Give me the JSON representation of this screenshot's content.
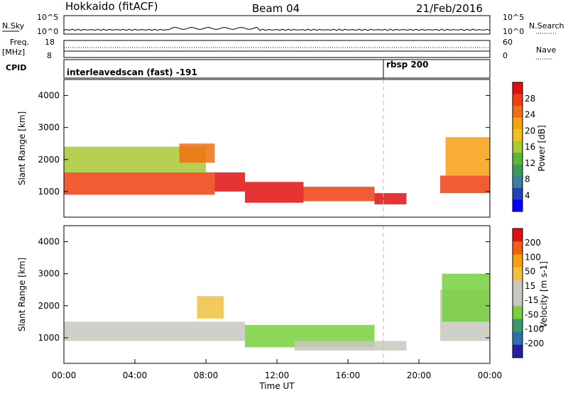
{
  "header": {
    "site": "Hokkaido (fitACF)",
    "beam": "Beam 04",
    "date": "21/Feb/2016"
  },
  "status_panels": {
    "nsky_label": "N.Sky",
    "nsearch_label": "N.Search",
    "nsky_ticks": [
      "10^5",
      "10^0"
    ],
    "nsearch_ticks": [
      "10^5",
      "10^0"
    ],
    "freq_label_1": "Freq.",
    "freq_label_2": "[MHz]",
    "freq_ticks": [
      "18",
      "8"
    ],
    "nave_label": "Nave",
    "nave_ticks": [
      "60",
      "0"
    ],
    "cpid_label": "CPID",
    "cpid_segments": [
      {
        "text": "interleavedscan (fast) -191",
        "start_hour": 0
      },
      {
        "text": "rbsp 200",
        "start_hour": 18.0
      }
    ]
  },
  "chart_data": [
    {
      "type": "heatmap",
      "panel": "power",
      "ylabel": "Slant Range [km]",
      "ylim": [
        200,
        4500
      ],
      "yticks": [
        "1000",
        "2000",
        "3000",
        "4000"
      ],
      "xlim_hours": [
        0,
        24
      ],
      "colorbar_label": "Power [dB]",
      "colorbar_ticks": [
        "28",
        "24",
        "20",
        "16",
        "12",
        "8",
        "4"
      ],
      "colorbar_colors": [
        "#0000ff",
        "#2040c0",
        "#3a7fa0",
        "#3c9a5a",
        "#5ab835",
        "#a8c835",
        "#f0c020",
        "#f7a010",
        "#f07010",
        "#f04010",
        "#e01010"
      ],
      "bands": [
        {
          "h0": 0.0,
          "h1": 8.5,
          "r0": 900,
          "r1": 1600,
          "color": "#f04010"
        },
        {
          "h0": 8.5,
          "h1": 10.2,
          "r0": 1000,
          "r1": 1600,
          "color": "#e01010"
        },
        {
          "h0": 10.2,
          "h1": 13.5,
          "r0": 650,
          "r1": 1300,
          "color": "#e01010"
        },
        {
          "h0": 13.5,
          "h1": 17.5,
          "r0": 700,
          "r1": 1150,
          "color": "#f04010"
        },
        {
          "h0": 17.5,
          "h1": 19.3,
          "r0": 600,
          "r1": 950,
          "color": "#e01010"
        },
        {
          "h0": 21.2,
          "h1": 24.0,
          "r0": 950,
          "r1": 1500,
          "color": "#f04010"
        },
        {
          "h0": 0.0,
          "h1": 8.0,
          "r0": 1600,
          "r1": 2400,
          "color": "#a8c835"
        },
        {
          "h0": 6.5,
          "h1": 8.5,
          "r0": 1900,
          "r1": 2500,
          "color": "#f07010"
        },
        {
          "h0": 21.5,
          "h1": 24.0,
          "r0": 1500,
          "r1": 2700,
          "color": "#f7a010"
        }
      ]
    },
    {
      "type": "heatmap",
      "panel": "velocity",
      "ylabel": "Slant Range [km]",
      "ylim": [
        200,
        4500
      ],
      "yticks": [
        "1000",
        "2000",
        "3000",
        "4000"
      ],
      "xlim_hours": [
        0,
        24
      ],
      "xticks": [
        "00:00",
        "04:00",
        "08:00",
        "12:00",
        "16:00",
        "20:00",
        "00:00"
      ],
      "xlabel": "Time UT",
      "colorbar_label": "Velocity [m s-1]",
      "colorbar_ticks": [
        "200",
        "100",
        "50",
        "15",
        "-15",
        "-50",
        "-100",
        "-200"
      ],
      "colorbar_colors": [
        "#2020a0",
        "#2f6fb0",
        "#3a9a6a",
        "#76d040",
        "#c8c8c0",
        "#c8c8c0",
        "#f0c040",
        "#f7a010",
        "#f06010",
        "#e01010"
      ],
      "bands": [
        {
          "h0": 0.0,
          "h1": 10.2,
          "r0": 900,
          "r1": 1500,
          "color": "#c8c8c0"
        },
        {
          "h0": 10.2,
          "h1": 17.5,
          "r0": 700,
          "r1": 1400,
          "color": "#76d040"
        },
        {
          "h0": 13.0,
          "h1": 19.3,
          "r0": 600,
          "r1": 900,
          "color": "#c8c8c0"
        },
        {
          "h0": 21.2,
          "h1": 24.0,
          "r0": 900,
          "r1": 2500,
          "color": "#c8c8c0"
        },
        {
          "h0": 21.3,
          "h1": 24.0,
          "r0": 1500,
          "r1": 3000,
          "color": "#76d040"
        },
        {
          "h0": 7.5,
          "h1": 9.0,
          "r0": 1600,
          "r1": 2300,
          "color": "#f0c040"
        }
      ]
    }
  ]
}
